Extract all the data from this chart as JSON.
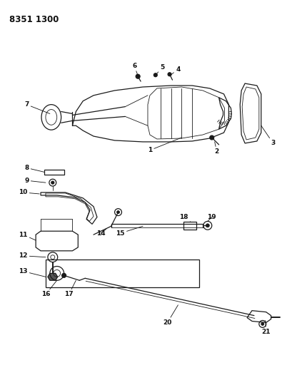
{
  "title": "8351 1300",
  "bg_color": "#ffffff",
  "line_color": "#1a1a1a",
  "label_color": "#111111",
  "fig_width": 4.1,
  "fig_height": 5.33,
  "dpi": 100
}
